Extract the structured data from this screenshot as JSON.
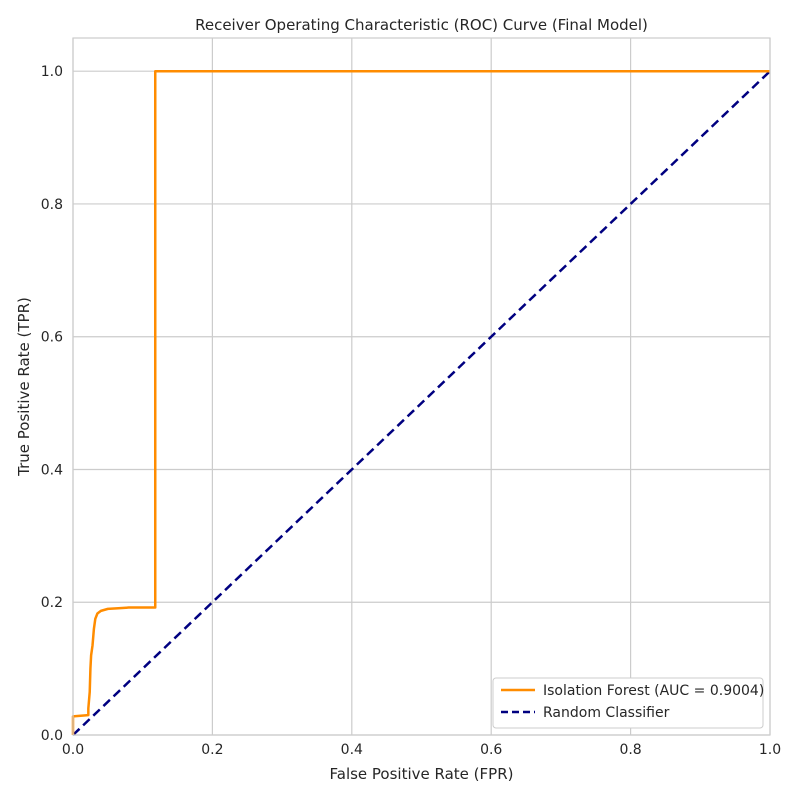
{
  "chart_data": {
    "type": "line",
    "title": "Receiver Operating Characteristic (ROC) Curve (Final Model)",
    "xlabel": "False Positive Rate (FPR)",
    "ylabel": "True Positive Rate (TPR)",
    "xlim": [
      0.0,
      1.0
    ],
    "ylim": [
      0.0,
      1.05
    ],
    "xticks": [
      "0.0",
      "0.2",
      "0.4",
      "0.6",
      "0.8",
      "1.0"
    ],
    "yticks": [
      "0.0",
      "0.2",
      "0.4",
      "0.6",
      "0.8",
      "1.0"
    ],
    "grid": true,
    "legend_position": "lower-right",
    "series": [
      {
        "name": "Isolation Forest (AUC = 0.9004)",
        "color": "#ff8c00",
        "style": "solid",
        "x": [
          0.0,
          0.0,
          0.022,
          0.022,
          0.024,
          0.025,
          0.026,
          0.028,
          0.03,
          0.032,
          0.035,
          0.04,
          0.05,
          0.065,
          0.08,
          0.118,
          0.118,
          1.0
        ],
        "y": [
          0.0,
          0.028,
          0.03,
          0.04,
          0.065,
          0.1,
          0.12,
          0.135,
          0.16,
          0.175,
          0.183,
          0.187,
          0.19,
          0.191,
          0.192,
          0.192,
          1.0,
          1.0
        ]
      },
      {
        "name": "Random Classifier",
        "color": "#000080",
        "style": "dashed",
        "x": [
          0.0,
          1.0
        ],
        "y": [
          0.0,
          1.0
        ]
      }
    ]
  }
}
